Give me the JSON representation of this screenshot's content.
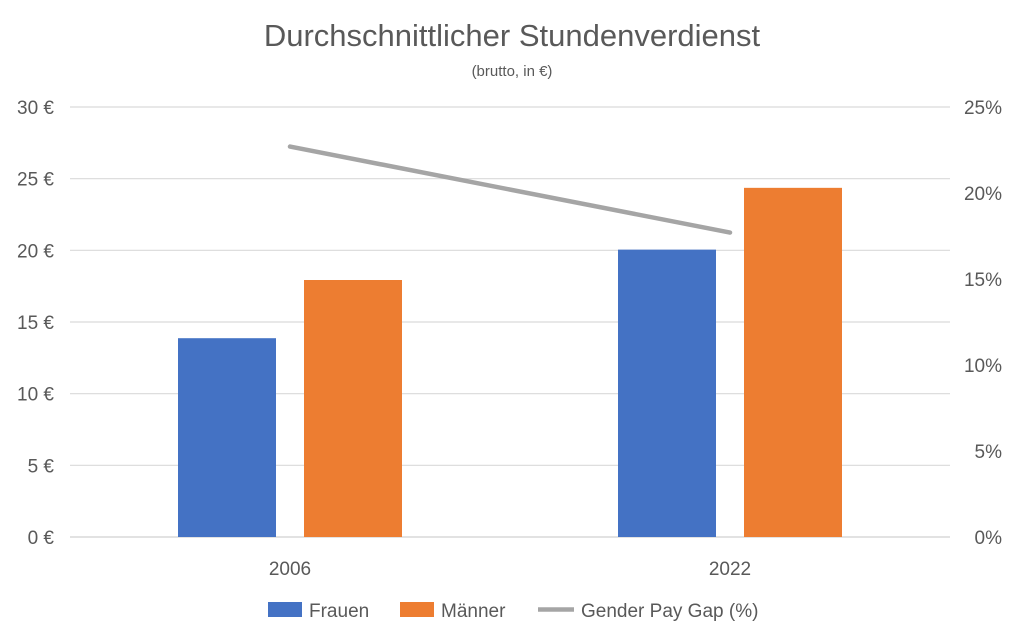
{
  "chart_data": {
    "type": "bar",
    "title": "Durchschnittlicher Stundenverdienst",
    "subtitle": "(brutto, in €)",
    "categories": [
      "2006",
      "2022"
    ],
    "series": [
      {
        "name": "Frauen",
        "type": "bar",
        "axis": "left",
        "color": "#4472C4",
        "values": [
          13.87,
          20.05
        ]
      },
      {
        "name": "Männer",
        "type": "bar",
        "axis": "left",
        "color": "#ED7D31",
        "values": [
          17.93,
          24.36
        ]
      },
      {
        "name": "Gender Pay Gap (%)",
        "type": "line",
        "axis": "right",
        "color": "#A5A5A5",
        "values": [
          22.7,
          17.7
        ]
      }
    ],
    "ylim": [
      0,
      30
    ],
    "y_ticks": [
      "0 €",
      "5 €",
      "10 €",
      "15 €",
      "20 €",
      "25 €",
      "30 €"
    ],
    "y2lim": [
      0,
      25
    ],
    "y2_ticks": [
      "0%",
      "5%",
      "10%",
      "15%",
      "20%",
      "25%"
    ],
    "grid": true,
    "legend": "bottom"
  }
}
